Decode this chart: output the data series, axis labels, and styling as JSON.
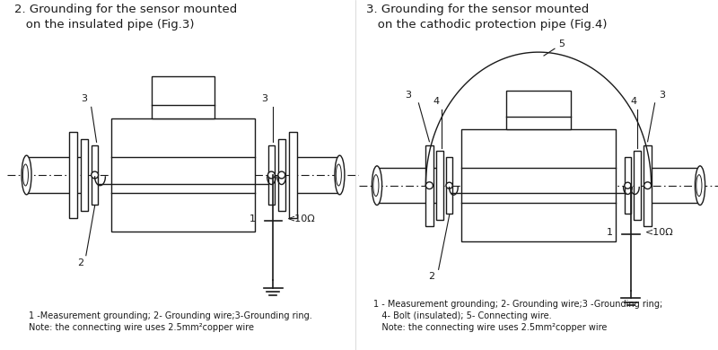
{
  "title1": "2. Grounding for the sensor mounted\n   on the insulated pipe (Fig.3)",
  "title2": "3. Grounding for the sensor mounted\n   on the cathodic protection pipe (Fig.4)",
  "note1": "1 -Measurement grounding; 2- Grounding wire;3-Grounding ring.\nNote: the connecting wire uses 2.5mm²copper wire",
  "note2": "1 - Measurement grounding; 2- Grounding wire;3 -Grounding ring;\n   4- Bolt (insulated); 5- Connecting wire.\n   Note: the connecting wire uses 2.5mm²copper wire",
  "line_color": "#1a1a1a",
  "bg_color": "#ffffff",
  "title_fontsize": 9.5,
  "note_fontsize": 7.0
}
